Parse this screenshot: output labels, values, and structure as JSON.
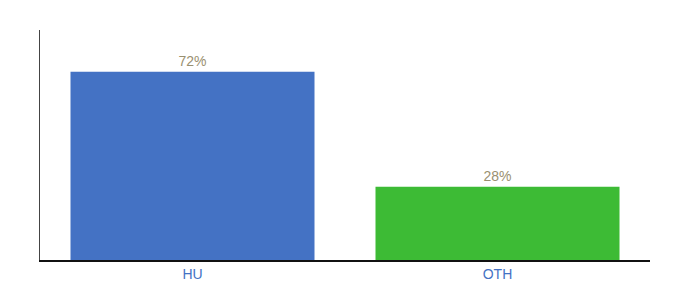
{
  "chart_data": {
    "type": "bar",
    "categories": [
      "HU",
      "OTH"
    ],
    "values": [
      72,
      28
    ],
    "value_labels": [
      "72%",
      "28%"
    ],
    "colors": [
      "#4472c4",
      "#3dbb35"
    ],
    "ylim": [
      0,
      88
    ],
    "data_labels": true,
    "tick_labels": "x",
    "grid": false
  }
}
